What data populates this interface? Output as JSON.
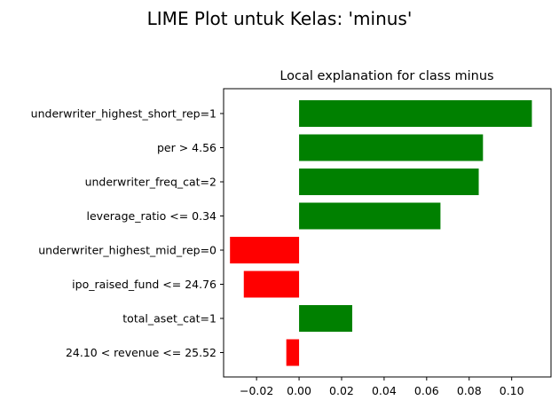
{
  "figure": {
    "suptitle": "LIME Plot untuk Kelas: 'minus'"
  },
  "chart_data": {
    "type": "bar",
    "orientation": "horizontal",
    "title": "Local explanation for class minus",
    "xlabel": "",
    "ylabel": "",
    "xlim": [
      -0.0355,
      0.1185
    ],
    "xticks": [
      -0.02,
      0.0,
      0.02,
      0.04,
      0.06,
      0.08,
      0.1
    ],
    "xtick_labels": [
      "−0.02",
      "0.00",
      "0.02",
      "0.04",
      "0.06",
      "0.08",
      "0.10"
    ],
    "categories": [
      "underwriter_highest_short_rep=1",
      "per > 4.56",
      "underwriter_freq_cat=2",
      "leverage_ratio <= 0.34",
      "underwriter_highest_mid_rep=0",
      "ipo_raised_fund <= 24.76",
      "total_aset_cat=1",
      "24.10 < revenue <= 25.52"
    ],
    "values": [
      0.1095,
      0.0865,
      0.0845,
      0.0665,
      -0.0325,
      -0.026,
      0.025,
      -0.006
    ],
    "colors": {
      "positive": "#008000",
      "negative": "#ff0000"
    },
    "grid": false,
    "legend": "none"
  }
}
